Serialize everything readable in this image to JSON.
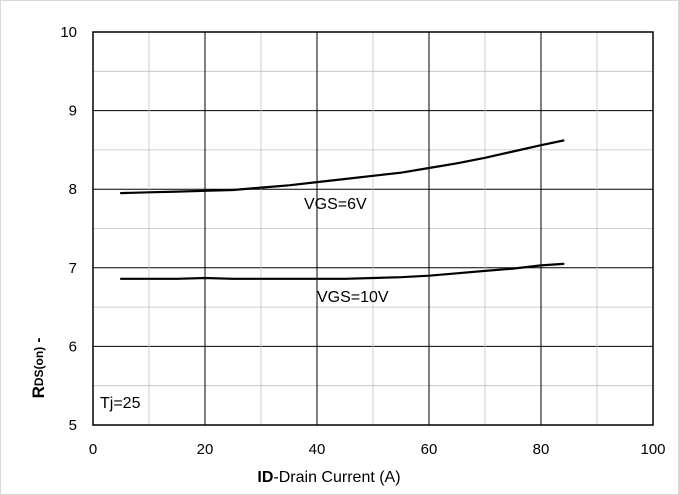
{
  "chart_data": {
    "type": "line",
    "xlim": [
      0,
      100
    ],
    "ylim": [
      5,
      10
    ],
    "x_ticks": [
      "0",
      "20",
      "40",
      "60",
      "80",
      "100"
    ],
    "y_ticks": [
      "5",
      "6",
      "7",
      "8",
      "9",
      "10"
    ],
    "grid": true,
    "xlabel_bold": "ID",
    "xlabel_rest": "-Drain Current (A)",
    "ylabel_main": "R",
    "ylabel_sub": "DS(on)",
    "ylabel_suffix": " -",
    "series": [
      {
        "name": "VGS=6V",
        "x": [
          5,
          10,
          15,
          20,
          25,
          30,
          35,
          40,
          45,
          50,
          55,
          60,
          65,
          70,
          75,
          80,
          84
        ],
        "y": [
          7.95,
          7.96,
          7.97,
          7.98,
          7.99,
          8.02,
          8.05,
          8.09,
          8.13,
          8.17,
          8.21,
          8.27,
          8.33,
          8.4,
          8.48,
          8.56,
          8.62
        ]
      },
      {
        "name": "VGS=10V",
        "x": [
          5,
          10,
          15,
          20,
          25,
          30,
          35,
          40,
          45,
          50,
          55,
          60,
          65,
          70,
          75,
          80,
          84
        ],
        "y": [
          6.86,
          6.86,
          6.86,
          6.87,
          6.86,
          6.86,
          6.86,
          6.86,
          6.86,
          6.87,
          6.88,
          6.9,
          6.93,
          6.96,
          6.99,
          7.03,
          7.05
        ]
      }
    ],
    "annotations": [
      "VGS=6V",
      "VGS=10V",
      "Tj=25"
    ]
  }
}
